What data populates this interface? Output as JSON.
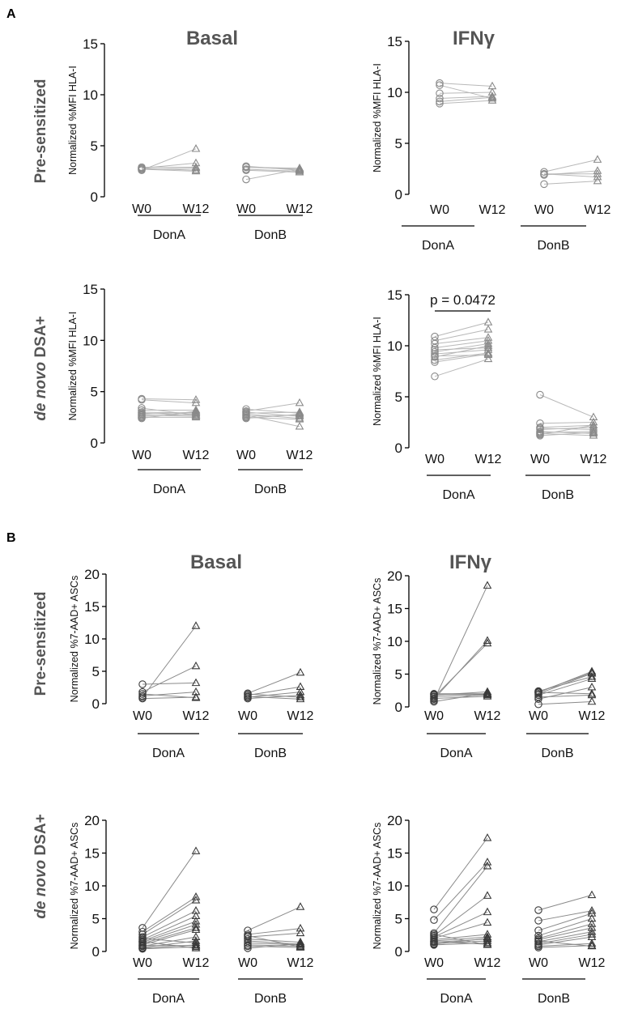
{
  "figure": {
    "panel_a": "A",
    "panel_b": "B",
    "row_labels": {
      "pre": "Pre-sensitized",
      "denovo_italic": "de novo",
      "denovo_rest": " DSA+"
    },
    "col_titles": {
      "basal": "Basal",
      "ifn": "IFNγ"
    },
    "colors": {
      "light": "#b8b8b8",
      "mid": "#8a8a8a",
      "dark": "#3a3a3a",
      "axis": "#000000"
    }
  },
  "chart_data": [
    {
      "id": "A-pre-basal",
      "type": "scatter",
      "ylabel": "Normalized %MFI HLA-I",
      "ylim": [
        0,
        15
      ],
      "yticks": [
        "0",
        "5",
        "10",
        "15"
      ],
      "x_ticks": [
        "W0",
        "W12",
        "W0",
        "W12"
      ],
      "groups": [
        "DonA",
        "DonB"
      ],
      "pairs": [
        [
          [
            2.7,
            2.8
          ],
          [
            2.8,
            3.3
          ],
          [
            2.8,
            2.6
          ],
          [
            2.6,
            4.7
          ],
          [
            2.9,
            2.9
          ],
          [
            2.7,
            2.5
          ]
        ],
        [
          [
            3.0,
            2.6
          ],
          [
            2.9,
            2.8
          ],
          [
            2.6,
            2.4
          ],
          [
            1.7,
            2.7
          ],
          [
            2.7,
            2.5
          ],
          [
            2.9,
            2.7
          ]
        ]
      ]
    },
    {
      "id": "A-pre-ifn",
      "type": "scatter",
      "title": "IFNγ",
      "ylabel": "Normalized %MFI HLA-I",
      "ylim": [
        0,
        15
      ],
      "yticks": [
        "0",
        "5",
        "10",
        "15"
      ],
      "x_ticks": [
        "W0",
        "W12",
        "W0",
        "W12"
      ],
      "groups": [
        "DonA",
        "DonB"
      ],
      "pairs": [
        [
          [
            10.9,
            10.6
          ],
          [
            10.7,
            9.4
          ],
          [
            9.9,
            10.0
          ],
          [
            9.4,
            9.6
          ],
          [
            8.9,
            9.2
          ],
          [
            9.1,
            9.5
          ]
        ],
        [
          [
            2.2,
            3.4
          ],
          [
            2.0,
            2.0
          ],
          [
            1.9,
            2.3
          ],
          [
            2.0,
            1.7
          ],
          [
            1.0,
            1.3
          ]
        ]
      ]
    },
    {
      "id": "A-denovo-basal",
      "type": "scatter",
      "ylabel": "Normalized %MFI HLA-I",
      "ylim": [
        0,
        15
      ],
      "yticks": [
        "0",
        "5",
        "10",
        "15"
      ],
      "x_ticks": [
        "W0",
        "W12",
        "W0",
        "W12"
      ],
      "groups": [
        "DonA",
        "DonB"
      ],
      "pairs": [
        [
          [
            4.3,
            4.2
          ],
          [
            4.2,
            3.9
          ],
          [
            3.4,
            2.7
          ],
          [
            3.2,
            3.2
          ],
          [
            3.0,
            2.9
          ],
          [
            2.9,
            2.7
          ],
          [
            2.8,
            3.0
          ],
          [
            2.7,
            2.6
          ],
          [
            2.6,
            2.8
          ],
          [
            2.5,
            2.5
          ],
          [
            2.4,
            3.1
          ]
        ],
        [
          [
            3.3,
            2.9
          ],
          [
            3.1,
            3.9
          ],
          [
            3.0,
            2.6
          ],
          [
            2.9,
            3.0
          ],
          [
            2.8,
            2.4
          ],
          [
            2.7,
            1.6
          ],
          [
            2.6,
            2.7
          ],
          [
            2.5,
            2.3
          ],
          [
            2.4,
            2.8
          ]
        ]
      ]
    },
    {
      "id": "A-denovo-ifn",
      "type": "scatter",
      "ylabel": "Normalized %MFI HLA-I",
      "ylim": [
        0,
        15
      ],
      "yticks": [
        "0",
        "5",
        "10",
        "15"
      ],
      "x_ticks": [
        "W0",
        "W12",
        "W0",
        "W12"
      ],
      "groups": [
        "DonA",
        "DonB"
      ],
      "annotation": "p = 0.0472",
      "pairs": [
        [
          [
            10.9,
            12.3
          ],
          [
            10.5,
            11.6
          ],
          [
            10.2,
            10.8
          ],
          [
            9.8,
            10.5
          ],
          [
            9.6,
            9.8
          ],
          [
            9.4,
            10.2
          ],
          [
            9.2,
            9.6
          ],
          [
            9.0,
            9.1
          ],
          [
            8.9,
            10.0
          ],
          [
            8.6,
            9.3
          ],
          [
            8.4,
            9.2
          ],
          [
            7.0,
            8.7
          ]
        ],
        [
          [
            5.2,
            3.0
          ],
          [
            2.4,
            2.5
          ],
          [
            2.0,
            2.2
          ],
          [
            1.9,
            1.8
          ],
          [
            1.8,
            2.0
          ],
          [
            1.6,
            1.4
          ],
          [
            1.5,
            1.6
          ],
          [
            1.4,
            1.2
          ],
          [
            1.3,
            2.2
          ],
          [
            1.2,
            1.5
          ]
        ]
      ]
    },
    {
      "id": "B-pre-basal",
      "type": "scatter",
      "ylabel": "Normalized %7-AAD+ ASCs",
      "ylim": [
        0,
        20
      ],
      "yticks": [
        "0",
        "5",
        "10",
        "15",
        "20"
      ],
      "x_ticks": [
        "W0",
        "W12",
        "W0",
        "W12"
      ],
      "groups": [
        "DonA",
        "DonB"
      ],
      "pairs": [
        [
          [
            1.0,
            12.0
          ],
          [
            1.8,
            5.8
          ],
          [
            3.0,
            3.2
          ],
          [
            1.2,
            1.8
          ],
          [
            0.8,
            1.0
          ],
          [
            1.5,
            0.9
          ]
        ],
        [
          [
            1.6,
            4.8
          ],
          [
            1.3,
            2.6
          ],
          [
            1.0,
            1.8
          ],
          [
            0.8,
            1.3
          ],
          [
            1.5,
            1.0
          ],
          [
            1.1,
            0.7
          ]
        ]
      ]
    },
    {
      "id": "B-pre-ifn",
      "type": "scatter",
      "ylabel": "Normalized %7-AAD+ ASCs",
      "ylim": [
        0,
        20
      ],
      "yticks": [
        "0",
        "5",
        "10",
        "15",
        "20"
      ],
      "x_ticks": [
        "W0",
        "W12",
        "W0",
        "W12"
      ],
      "groups": [
        "DonA",
        "DonB"
      ],
      "pairs": [
        [
          [
            1.0,
            18.5
          ],
          [
            1.2,
            10.1
          ],
          [
            1.5,
            9.7
          ],
          [
            1.8,
            2.3
          ],
          [
            1.9,
            1.9
          ],
          [
            0.8,
            2.1
          ],
          [
            1.3,
            1.6
          ],
          [
            1.6,
            1.8
          ],
          [
            2.0,
            2.0
          ]
        ],
        [
          [
            2.2,
            5.4
          ],
          [
            2.0,
            5.1
          ],
          [
            2.4,
            4.6
          ],
          [
            1.8,
            4.3
          ],
          [
            1.2,
            3.0
          ],
          [
            2.2,
            2.0
          ],
          [
            1.5,
            1.8
          ],
          [
            0.4,
            0.8
          ],
          [
            2.3,
            5.2
          ]
        ]
      ]
    },
    {
      "id": "B-denovo-basal",
      "type": "scatter",
      "ylabel": "Normalized %7-AAD+ ASCs",
      "ylim": [
        0,
        20
      ],
      "yticks": [
        "0",
        "5",
        "10",
        "15",
        "20"
      ],
      "x_ticks": [
        "W0",
        "W12",
        "W0",
        "W12"
      ],
      "groups": [
        "DonA",
        "DonB"
      ],
      "pairs": [
        [
          [
            3.6,
            15.3
          ],
          [
            3.0,
            8.3
          ],
          [
            2.6,
            7.8
          ],
          [
            2.2,
            6.2
          ],
          [
            1.8,
            5.4
          ],
          [
            1.6,
            4.6
          ],
          [
            1.4,
            4.1
          ],
          [
            1.2,
            3.6
          ],
          [
            1.0,
            3.3
          ],
          [
            0.8,
            2.2
          ],
          [
            0.6,
            1.6
          ],
          [
            0.5,
            1.0
          ],
          [
            0.4,
            0.7
          ],
          [
            1.5,
            0.5
          ],
          [
            2.0,
            1.3
          ],
          [
            0.9,
            0.9
          ]
        ],
        [
          [
            3.2,
            6.8
          ],
          [
            2.6,
            3.5
          ],
          [
            2.2,
            2.8
          ],
          [
            1.9,
            1.4
          ],
          [
            1.6,
            1.1
          ],
          [
            1.3,
            1.0
          ],
          [
            1.0,
            0.8
          ],
          [
            0.8,
            0.6
          ],
          [
            0.5,
            1.2
          ],
          [
            2.4,
            0.7
          ]
        ]
      ]
    },
    {
      "id": "B-denovo-ifn",
      "type": "scatter",
      "ylabel": "Normalized %7-AAD+ ASCs",
      "ylim": [
        0,
        20
      ],
      "yticks": [
        "0",
        "5",
        "10",
        "15",
        "20"
      ],
      "x_ticks": [
        "W0",
        "W12",
        "W0",
        "W12"
      ],
      "groups": [
        "DonA",
        "DonB"
      ],
      "pairs": [
        [
          [
            6.4,
            17.3
          ],
          [
            4.8,
            13.6
          ],
          [
            2.8,
            13.0
          ],
          [
            2.4,
            8.5
          ],
          [
            2.2,
            6.0
          ],
          [
            2.0,
            4.4
          ],
          [
            1.8,
            2.6
          ],
          [
            1.6,
            2.2
          ],
          [
            1.4,
            1.9
          ],
          [
            1.2,
            1.6
          ],
          [
            1.0,
            1.3
          ],
          [
            1.5,
            1.1
          ],
          [
            2.6,
            1.0
          ],
          [
            1.1,
            2.0
          ]
        ],
        [
          [
            6.3,
            8.6
          ],
          [
            4.7,
            6.2
          ],
          [
            3.2,
            5.8
          ],
          [
            2.4,
            5.0
          ],
          [
            2.0,
            4.2
          ],
          [
            1.8,
            3.6
          ],
          [
            1.5,
            3.0
          ],
          [
            1.2,
            2.6
          ],
          [
            1.0,
            2.2
          ],
          [
            0.8,
            1.2
          ],
          [
            0.6,
            0.9
          ],
          [
            1.6,
            0.8
          ]
        ]
      ]
    }
  ]
}
